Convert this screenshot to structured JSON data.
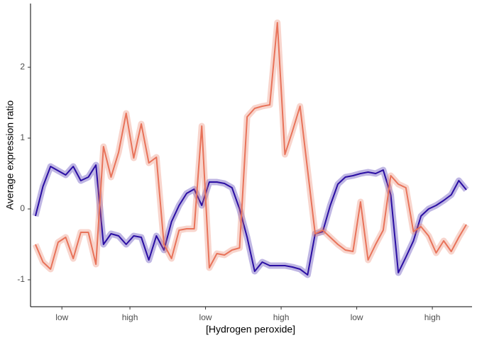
{
  "chart_data": {
    "type": "line",
    "xlabel": "[Hydrogen peroxide]",
    "ylabel": "Average expression ratio",
    "x": [
      1,
      2,
      3,
      4,
      5,
      6,
      7,
      8,
      9,
      10,
      11,
      12,
      13,
      14,
      15,
      16,
      17,
      18,
      19,
      20,
      21,
      22,
      23,
      24,
      25,
      26,
      27,
      28,
      29,
      30,
      31,
      32,
      33,
      34,
      35,
      36,
      37,
      38,
      39,
      40,
      41,
      42,
      43,
      44,
      45,
      46,
      47,
      48,
      49,
      50,
      51,
      52,
      53,
      54,
      55,
      56,
      57,
      58
    ],
    "xlim": [
      0.35,
      58.75
    ],
    "xticks": [
      {
        "value": 4.5,
        "label": "low"
      },
      {
        "value": 13.5,
        "label": "high"
      },
      {
        "value": 23.5,
        "label": "low"
      },
      {
        "value": 33.5,
        "label": "high"
      },
      {
        "value": 43.5,
        "label": "low"
      },
      {
        "value": 53.5,
        "label": "high"
      }
    ],
    "ylim": [
      -1.38,
      2.9
    ],
    "yticks": [
      -1,
      0,
      1,
      2
    ],
    "series": [
      {
        "color": "#2a0ea3",
        "values": [
          -0.1,
          0.32,
          0.6,
          0.54,
          0.48,
          0.6,
          0.4,
          0.45,
          0.62,
          -0.5,
          -0.35,
          -0.38,
          -0.5,
          -0.38,
          -0.4,
          -0.72,
          -0.38,
          -0.58,
          -0.18,
          0.05,
          0.22,
          0.28,
          0.05,
          0.38,
          0.38,
          0.36,
          0.3,
          0.0,
          -0.4,
          -0.88,
          -0.75,
          -0.8,
          -0.8,
          -0.8,
          -0.82,
          -0.85,
          -0.93,
          -0.35,
          -0.32,
          0.05,
          0.35,
          0.45,
          0.47,
          0.5,
          0.52,
          0.5,
          0.55,
          0.2,
          -0.9,
          -0.68,
          -0.45,
          -0.1,
          0.0,
          0.05,
          0.12,
          0.2,
          0.4,
          0.27
        ]
      },
      {
        "color": "#e8735a",
        "values": [
          -0.5,
          -0.75,
          -0.85,
          -0.47,
          -0.4,
          -0.7,
          -0.33,
          -0.33,
          -0.78,
          0.88,
          0.45,
          0.8,
          1.35,
          0.72,
          1.2,
          0.65,
          0.73,
          -0.5,
          -0.7,
          -0.3,
          -0.28,
          -0.28,
          1.17,
          -0.83,
          -0.63,
          -0.65,
          -0.58,
          -0.55,
          1.3,
          1.42,
          1.45,
          1.47,
          2.63,
          0.77,
          1.1,
          1.45,
          0.55,
          -0.35,
          -0.3,
          -0.4,
          -0.5,
          -0.58,
          -0.6,
          0.1,
          -0.72,
          -0.5,
          -0.3,
          0.47,
          0.35,
          0.3,
          -0.32,
          -0.25,
          -0.38,
          -0.62,
          -0.45,
          -0.6,
          -0.4,
          -0.22
        ]
      }
    ]
  }
}
